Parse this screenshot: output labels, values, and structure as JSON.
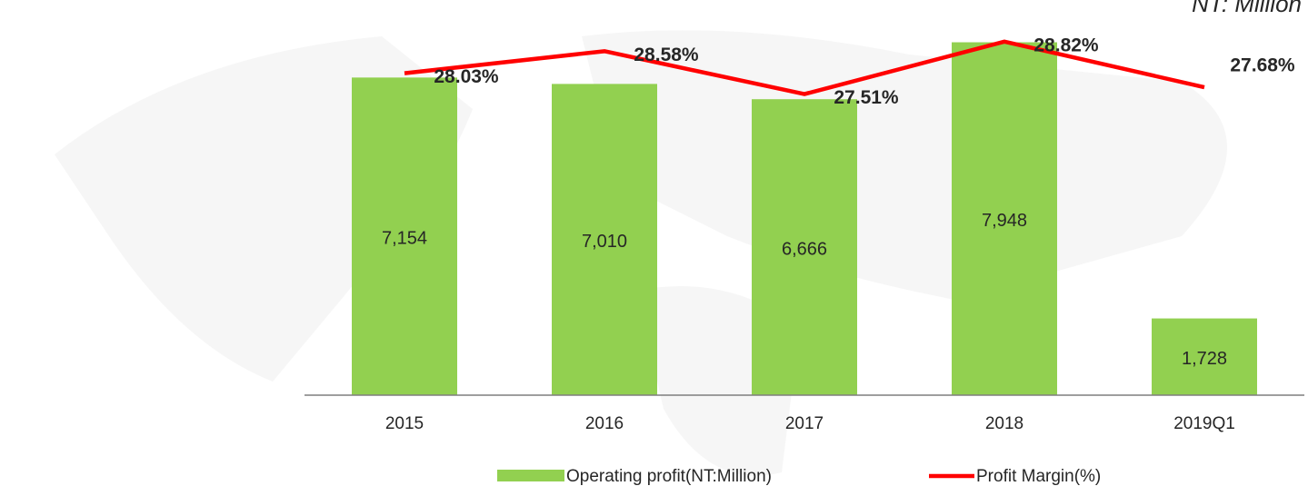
{
  "chart_data": {
    "type": "bar",
    "subtitle": "NT: Million",
    "categories": [
      "2015",
      "2016",
      "2017",
      "2018",
      "2019Q1"
    ],
    "series": [
      {
        "name": "Operating profit(NT:Million)",
        "type": "bar",
        "color": "#92d050",
        "values": [
          7154,
          7010,
          6666,
          7948,
          1728
        ],
        "value_labels": [
          "7,154",
          "7,010",
          "6,666",
          "7,948",
          "1,728"
        ]
      },
      {
        "name": "Profit Margin(%)",
        "type": "line",
        "axis": "y2",
        "color": "#ff0000",
        "values": [
          28.03,
          28.58,
          27.51,
          28.82,
          27.68
        ],
        "value_labels": [
          "28.03%",
          "28.58%",
          "27.51%",
          "28.82%",
          "27.68%"
        ]
      }
    ],
    "ylim": [
      0,
      8000
    ],
    "y2lim": [
      20,
      28.86
    ]
  }
}
